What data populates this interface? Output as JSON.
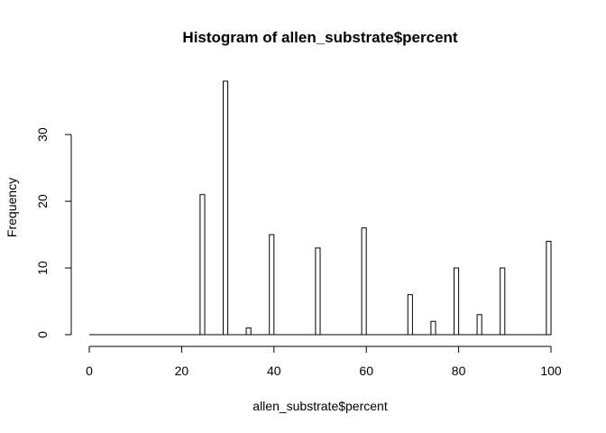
{
  "chart_data": {
    "type": "bar",
    "title": "Histogram of allen_substrate$percent",
    "xlabel": "allen_substrate$percent",
    "ylabel": "Frequency",
    "xlim": [
      0,
      100
    ],
    "ylim": [
      0,
      38
    ],
    "x_ticks": [
      0,
      20,
      40,
      60,
      80,
      100
    ],
    "y_ticks": [
      0,
      10,
      20,
      30
    ],
    "bin_width": 1,
    "bins": [
      {
        "left": 24,
        "right": 25,
        "count": 21
      },
      {
        "left": 29,
        "right": 30,
        "count": 38
      },
      {
        "left": 34,
        "right": 35,
        "count": 1
      },
      {
        "left": 39,
        "right": 40,
        "count": 15
      },
      {
        "left": 49,
        "right": 50,
        "count": 13
      },
      {
        "left": 59,
        "right": 60,
        "count": 16
      },
      {
        "left": 69,
        "right": 70,
        "count": 6
      },
      {
        "left": 74,
        "right": 75,
        "count": 2
      },
      {
        "left": 79,
        "right": 80,
        "count": 10
      },
      {
        "left": 84,
        "right": 85,
        "count": 3
      },
      {
        "left": 89,
        "right": 90,
        "count": 10
      },
      {
        "left": 99,
        "right": 100,
        "count": 14
      }
    ],
    "grid": false,
    "legend": "none",
    "bar_fill": "#ffffff",
    "bar_stroke": "#000000"
  }
}
